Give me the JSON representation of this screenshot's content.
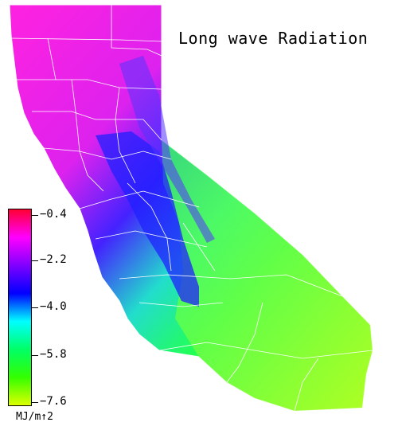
{
  "title": "Long wave Radiation",
  "legend": {
    "units": "MJ/m↑2",
    "ticks": [
      "−0.4",
      "−2.2",
      "−4.0",
      "−5.8",
      "−7.6"
    ],
    "range": [
      -7.6,
      -0.4
    ],
    "colors": [
      "#ff0033",
      "#ff00ff",
      "#8000ff",
      "#0000ff",
      "#00ffff",
      "#00ff66",
      "#33ff00",
      "#ddff00"
    ]
  },
  "map": {
    "region": "California",
    "background": "#ffffff",
    "boundary_color": "#ffffff"
  }
}
